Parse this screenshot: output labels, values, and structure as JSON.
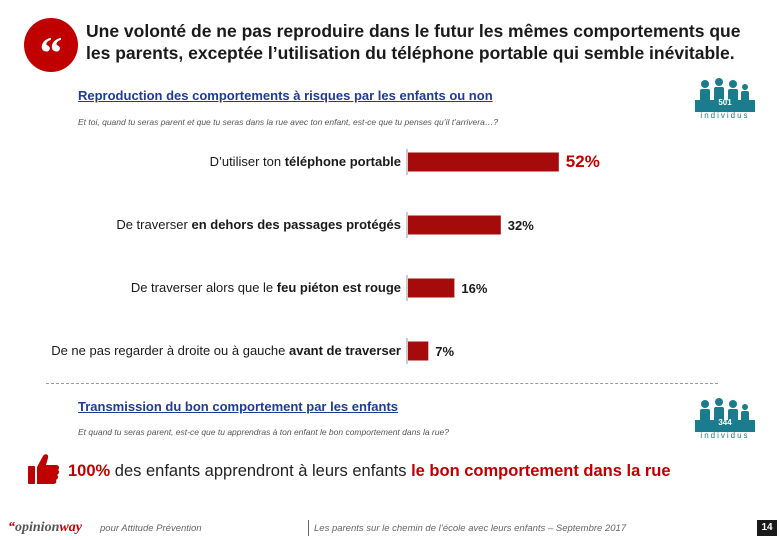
{
  "header": {
    "badge_glyph": "“",
    "headline": "Une volonté de ne pas reproduire dans le futur les mêmes comportements que les parents, exceptée l’utilisation du téléphone portable qui semble inévitable."
  },
  "section1": {
    "title": "Reproduction des comportements à risques par les enfants ou non",
    "question": "Et toi, quand tu seras parent et que tu seras dans la rue avec ton enfant, est-ce que tu penses qu’il t’arrivera…?",
    "sample_count": "501",
    "sample_unit": "individus"
  },
  "chart_data": {
    "type": "bar",
    "orientation": "horizontal",
    "categories": [
      "D’utiliser ton téléphone portable",
      "De traverser en dehors des passages protégés",
      "De traverser alors que le feu piéton est rouge",
      "De ne pas regarder à droite ou à gauche avant de traverser"
    ],
    "category_parts": [
      [
        "D’utiliser ton ",
        "téléphone portable"
      ],
      [
        "De traverser ",
        "en dehors des passages protégés"
      ],
      [
        "De traverser alors que le ",
        "feu piéton est rouge"
      ],
      [
        "De ne pas regarder à droite ou à gauche ",
        "avant de traverser"
      ]
    ],
    "values": [
      52,
      32,
      16,
      7
    ],
    "value_labels": [
      "52%",
      "32%",
      "16%",
      "7%"
    ],
    "xlim": [
      0,
      100
    ],
    "bar_color": "#a50b0b",
    "label_color": "#c00000",
    "grid": false
  },
  "section2": {
    "title": "Transmission du bon comportement par les enfants",
    "question": "Et quand tu seras parent, est-ce que tu apprendras à ton enfant le bon comportement dans la rue?",
    "sample_count": "344",
    "sample_unit": "individus"
  },
  "conclusion": {
    "pct": "100%",
    "middle": " des enfants apprendront à leurs enfants ",
    "emphasis": "le bon comportement dans la rue"
  },
  "footer": {
    "logo_mark": "“",
    "logo_a": "opinion",
    "logo_b": "way",
    "note": "pour Attitude Prévention",
    "study": "Les parents sur le chemin de l’école avec leurs enfants – Septembre 2017",
    "page": "14"
  },
  "colors": {
    "brand_red": "#c00000",
    "title_blue": "#1f3b93",
    "teal": "#1a7c8c"
  },
  "icons": [
    "quote-icon",
    "people-icon",
    "thumbs-up-icon"
  ]
}
